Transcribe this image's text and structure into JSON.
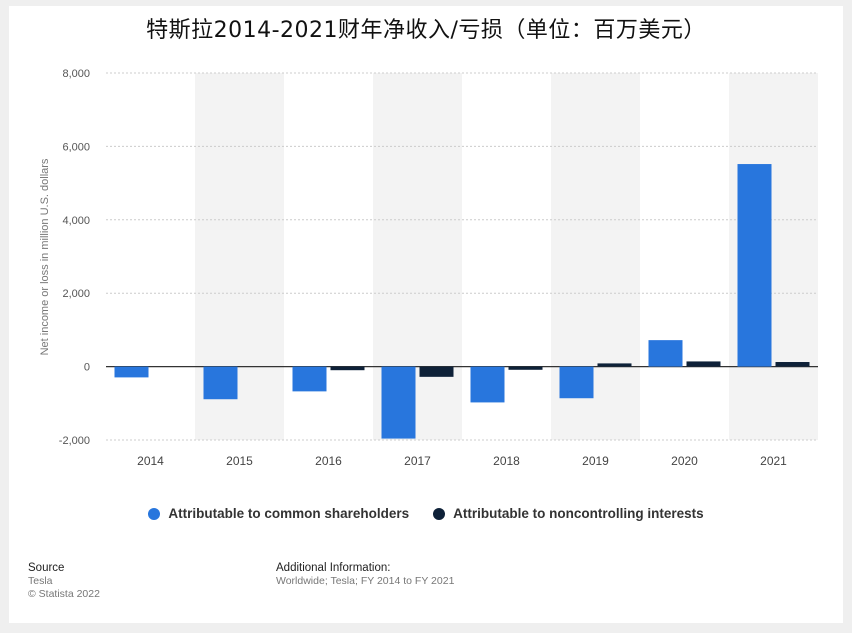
{
  "title": "特斯拉2014-2021财年净收入/亏损（单位：百万美元）",
  "chart_data": {
    "type": "bar",
    "categories": [
      "2014",
      "2015",
      "2016",
      "2017",
      "2018",
      "2019",
      "2020",
      "2021"
    ],
    "series": [
      {
        "name": "Attributable to common shareholders",
        "color": "#2876dd",
        "values": [
          -294,
          -889,
          -675,
          -1961,
          -976,
          -862,
          721,
          5519
        ]
      },
      {
        "name": "Attributable to noncontrolling interests",
        "color": "#0e2138",
        "values": [
          0,
          0,
          -98,
          -279,
          -87,
          87,
          141,
          125
        ]
      }
    ],
    "ylabel": "Net income or loss in million U.S. dollars",
    "ylim": [
      -2000,
      8000
    ],
    "yticks": [
      "8,000",
      "6,000",
      "4,000",
      "2,000",
      "0",
      "-2,000"
    ],
    "ytick_values": [
      8000,
      6000,
      4000,
      2000,
      0,
      -2000
    ],
    "grid": true,
    "legend_position": "bottom"
  },
  "footer": {
    "source_heading": "Source",
    "source_name": "Tesla",
    "copyright": "© Statista 2022",
    "info_heading": "Additional Information:",
    "info_text": "Worldwide; Tesla; FY 2014 to FY 2021"
  }
}
